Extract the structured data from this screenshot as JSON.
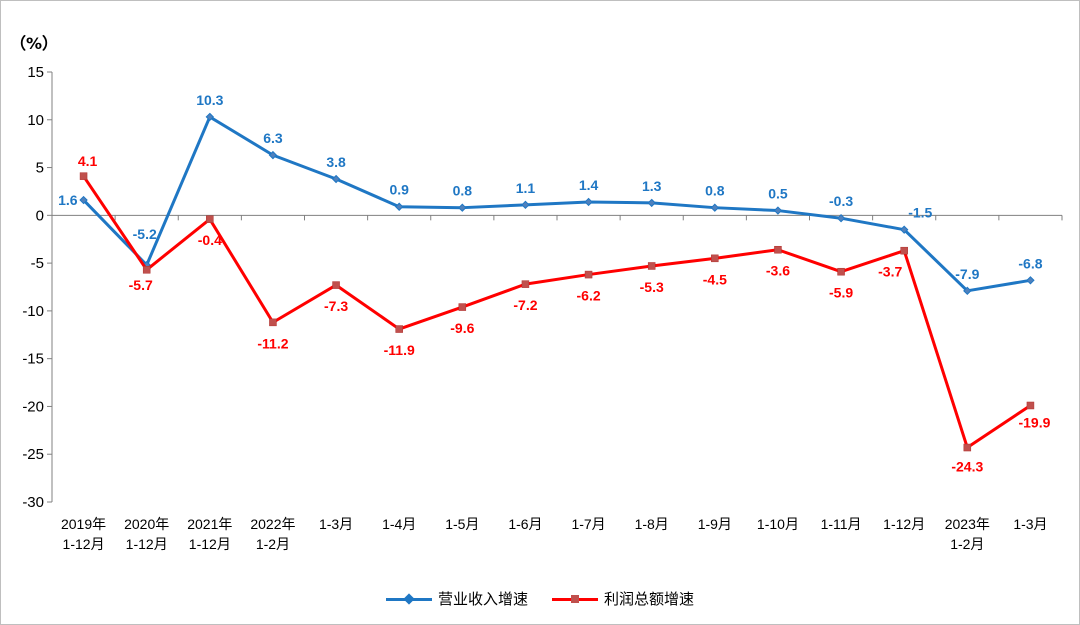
{
  "chart_data": {
    "type": "line",
    "unit_label": "（%）",
    "ylim": [
      -30,
      15
    ],
    "yticks": [
      15,
      10,
      5,
      0,
      -5,
      -10,
      -15,
      -20,
      -25,
      -30
    ],
    "categories": [
      [
        "2019年",
        "1-12月"
      ],
      [
        "2020年",
        "1-12月"
      ],
      [
        "2021年",
        "1-12月"
      ],
      [
        "2022年",
        "1-2月"
      ],
      [
        "1-3月"
      ],
      [
        "1-4月"
      ],
      [
        "1-5月"
      ],
      [
        "1-6月"
      ],
      [
        "1-7月"
      ],
      [
        "1-8月"
      ],
      [
        "1-9月"
      ],
      [
        "1-10月"
      ],
      [
        "1-11月"
      ],
      [
        "1-12月"
      ],
      [
        "2023年",
        "1-2月"
      ],
      [
        "1-3月"
      ]
    ],
    "series": [
      {
        "name": "营业收入增速",
        "color": "#1F77C4",
        "marker": "diamond",
        "values": [
          1.6,
          -5.2,
          10.3,
          6.3,
          3.8,
          0.9,
          0.8,
          1.1,
          1.4,
          1.3,
          0.8,
          0.5,
          -0.3,
          -1.5,
          -7.9,
          -6.8
        ],
        "labels": [
          "1.6",
          "-5.2",
          "10.3",
          "6.3",
          "3.8",
          "0.9",
          "0.8",
          "1.1",
          "1.4",
          "1.3",
          "0.8",
          "0.5",
          "-0.3",
          "-1.5",
          "-7.9",
          "-6.8"
        ]
      },
      {
        "name": "利润总额增速",
        "color": "#FF0000",
        "marker": "square",
        "values": [
          4.1,
          -5.7,
          -0.4,
          -11.2,
          -7.3,
          -11.9,
          -9.6,
          -7.2,
          -6.2,
          -5.3,
          -4.5,
          -3.6,
          -5.9,
          -3.7,
          -24.3,
          -19.9
        ],
        "labels": [
          "4.1",
          "-5.7",
          "-0.4",
          "-11.2",
          "-7.3",
          "-11.9",
          "-9.6",
          "-7.2",
          "-6.2",
          "-5.3",
          "-4.5",
          "-3.6",
          "-5.9",
          "-3.7",
          "-24.3",
          "-19.9"
        ]
      }
    ],
    "grid": false,
    "legend_position": "bottom"
  }
}
